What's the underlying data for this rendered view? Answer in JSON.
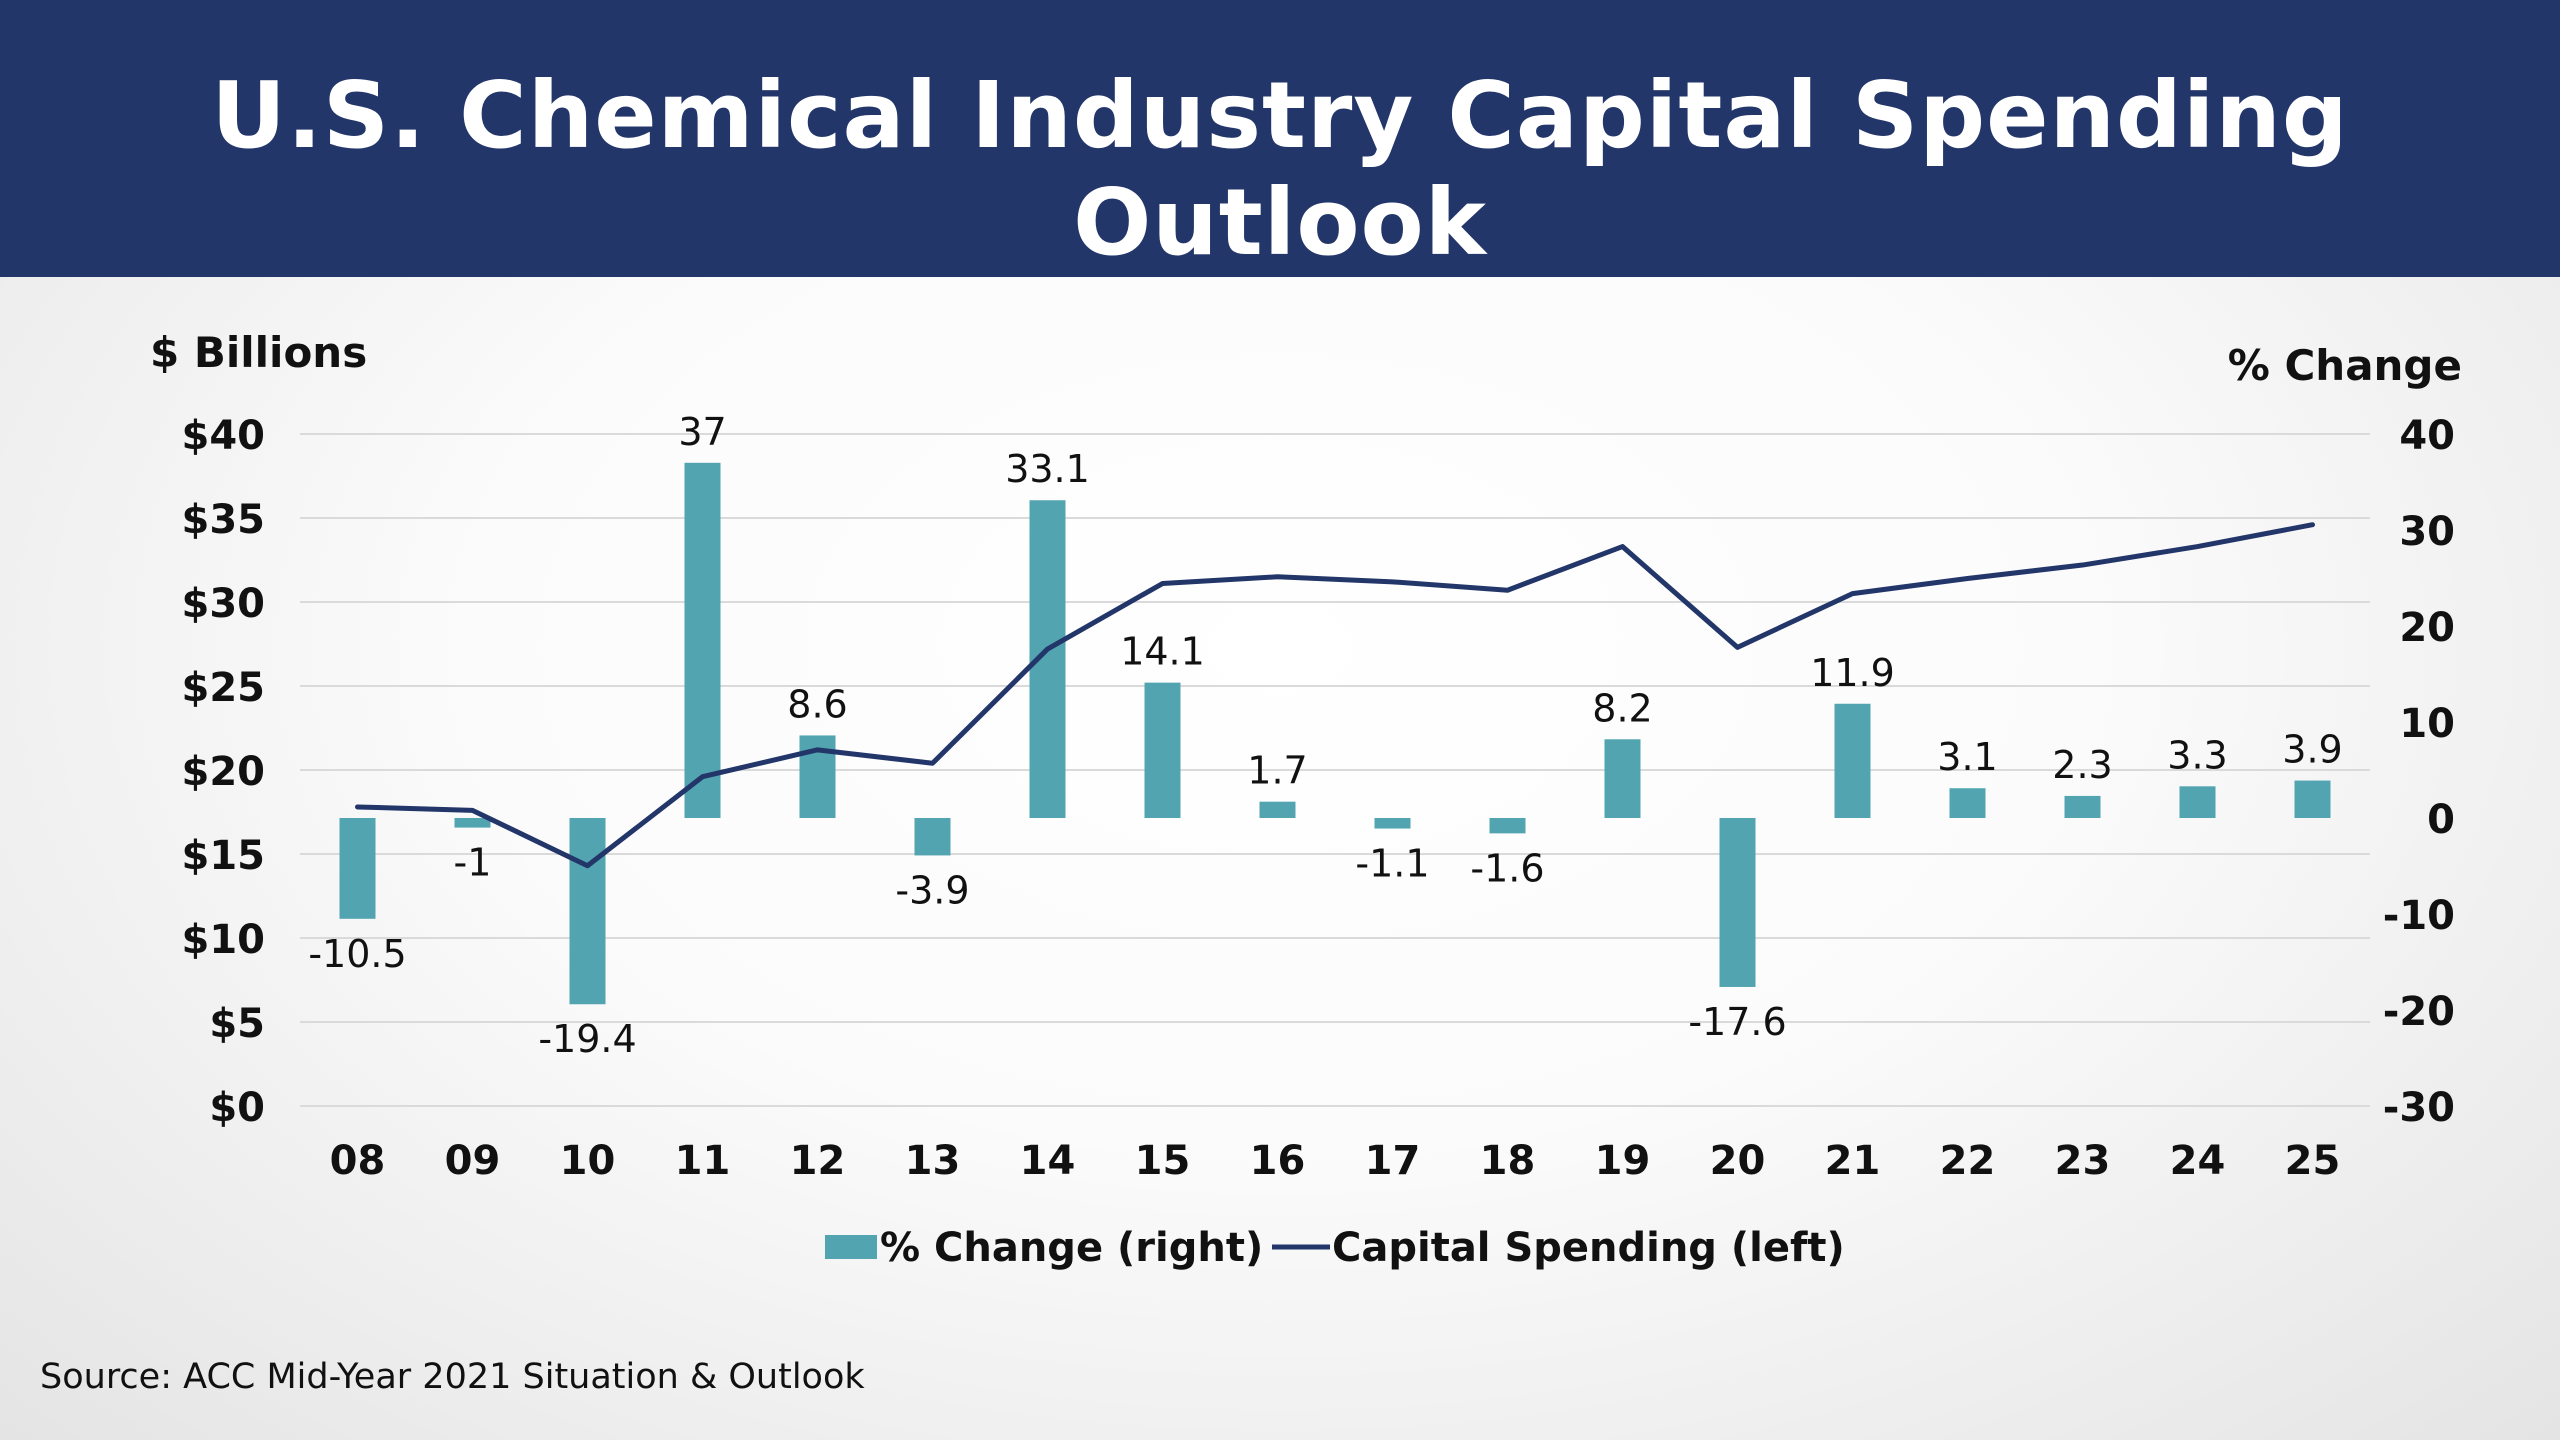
{
  "header": {
    "title": "U.S. Chemical Industry Capital Spending Outlook"
  },
  "source": "Source: ACC Mid-Year 2021 Situation & Outlook",
  "chart_data": {
    "type": "bar",
    "categories": [
      "08",
      "09",
      "10",
      "11",
      "12",
      "13",
      "14",
      "15",
      "16",
      "17",
      "18",
      "19",
      "20",
      "21",
      "22",
      "23",
      "24",
      "25"
    ],
    "series": [
      {
        "name": "% Change (right)",
        "type": "bar",
        "axis": "right",
        "color": "#52a5b0",
        "values": [
          -10.5,
          -1,
          -19.4,
          37,
          8.6,
          -3.9,
          33.1,
          14.1,
          1.7,
          -1.1,
          -1.6,
          8.2,
          -17.6,
          11.9,
          3.1,
          2.3,
          3.3,
          3.9
        ],
        "labels": [
          "-10.5",
          "-1",
          "-19.4",
          "37",
          "8.6",
          "-3.9",
          "33.1",
          "14.1",
          "1.7",
          "-1.1",
          "-1.6",
          "8.2",
          "-17.6",
          "11.9",
          "3.1",
          "2.3",
          "3.3",
          "3.9"
        ]
      },
      {
        "name": "Capital Spending (left)",
        "type": "line",
        "axis": "left",
        "color": "#23366a",
        "values": [
          17.8,
          17.6,
          14.3,
          19.6,
          21.2,
          20.4,
          27.2,
          31.1,
          31.5,
          31.2,
          30.7,
          33.3,
          27.3,
          30.5,
          31.4,
          32.2,
          33.3,
          34.6
        ]
      }
    ],
    "left_axis": {
      "label": "$ Billions",
      "ylim": [
        0,
        40
      ],
      "ticks": [
        "$0",
        "$5",
        "$10",
        "$15",
        "$20",
        "$25",
        "$30",
        "$35",
        "$40"
      ]
    },
    "right_axis": {
      "label": "% Change",
      "ylim": [
        -30,
        40
      ],
      "ticks": [
        "-30",
        "-20",
        "-10",
        "0",
        "10",
        "20",
        "30",
        "40"
      ]
    },
    "grid": true,
    "legend_position": "bottom"
  }
}
